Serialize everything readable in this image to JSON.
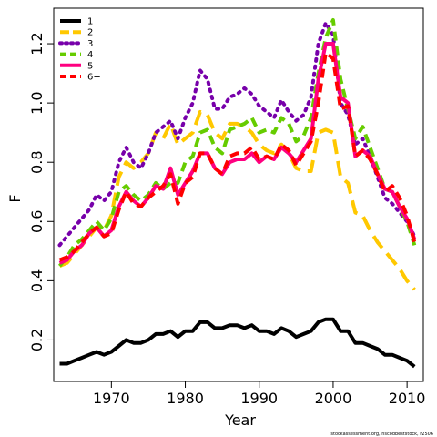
{
  "chart_data": {
    "type": "line",
    "title": "",
    "xlabel": "Year",
    "ylabel": "F",
    "xlim": [
      1962.2,
      2012.2
    ],
    "ylim": [
      0.06,
      1.32
    ],
    "x_ticks": [
      1970,
      1980,
      1990,
      2000,
      2010
    ],
    "y_ticks": [
      0.2,
      0.4,
      0.6,
      0.8,
      1.0,
      1.2
    ],
    "x_tick_labels": [
      "1970",
      "1980",
      "1990",
      "2000",
      "2010"
    ],
    "y_tick_labels": [
      "0.2",
      "0.4",
      "0.6",
      "0.8",
      "1.0",
      "1.2"
    ],
    "grid": false,
    "legend_position": "top-left",
    "x": [
      1963,
      1964,
      1965,
      1966,
      1967,
      1968,
      1969,
      1970,
      1971,
      1972,
      1973,
      1974,
      1975,
      1976,
      1977,
      1978,
      1979,
      1980,
      1981,
      1982,
      1983,
      1984,
      1985,
      1986,
      1987,
      1988,
      1989,
      1990,
      1991,
      1992,
      1993,
      1994,
      1995,
      1996,
      1997,
      1998,
      1999,
      2000,
      2001,
      2002,
      2003,
      2004,
      2005,
      2006,
      2007,
      2008,
      2009,
      2010,
      2011
    ],
    "series": [
      {
        "name": "1",
        "color": "#000000",
        "dash": "solid",
        "values": [
          0.12,
          0.12,
          0.13,
          0.14,
          0.15,
          0.16,
          0.15,
          0.16,
          0.18,
          0.2,
          0.19,
          0.19,
          0.2,
          0.22,
          0.22,
          0.23,
          0.21,
          0.23,
          0.23,
          0.26,
          0.26,
          0.24,
          0.24,
          0.25,
          0.25,
          0.24,
          0.25,
          0.23,
          0.23,
          0.22,
          0.24,
          0.23,
          0.21,
          0.22,
          0.23,
          0.26,
          0.27,
          0.27,
          0.23,
          0.23,
          0.19,
          0.19,
          0.18,
          0.17,
          0.15,
          0.15,
          0.14,
          0.13,
          0.11
        ]
      },
      {
        "name": "2",
        "color": "#FFC800",
        "dash": "long",
        "values": [
          0.45,
          0.46,
          0.49,
          0.52,
          0.55,
          0.58,
          0.57,
          0.62,
          0.75,
          0.8,
          0.78,
          0.8,
          0.83,
          0.9,
          0.88,
          0.93,
          0.86,
          0.88,
          0.9,
          0.97,
          0.96,
          0.9,
          0.88,
          0.93,
          0.93,
          0.92,
          0.9,
          0.86,
          0.84,
          0.83,
          0.86,
          0.83,
          0.78,
          0.77,
          0.77,
          0.9,
          0.91,
          0.9,
          0.75,
          0.73,
          0.63,
          0.62,
          0.57,
          0.53,
          0.5,
          0.47,
          0.44,
          0.4,
          0.37
        ]
      },
      {
        "name": "3",
        "color": "#7700AA",
        "dash": "dotted",
        "values": [
          0.52,
          0.55,
          0.58,
          0.61,
          0.64,
          0.69,
          0.67,
          0.7,
          0.8,
          0.85,
          0.8,
          0.78,
          0.83,
          0.9,
          0.92,
          0.94,
          0.88,
          0.95,
          1.0,
          1.11,
          1.08,
          0.98,
          0.98,
          1.02,
          1.03,
          1.05,
          1.03,
          0.99,
          0.97,
          0.95,
          1.01,
          0.97,
          0.94,
          0.96,
          1.02,
          1.2,
          1.27,
          1.23,
          1.0,
          0.96,
          0.86,
          0.88,
          0.82,
          0.75,
          0.68,
          0.66,
          0.63,
          0.6,
          0.55
        ]
      },
      {
        "name": "4",
        "color": "#66CC00",
        "dash": "dashed",
        "values": [
          0.45,
          0.48,
          0.52,
          0.54,
          0.57,
          0.6,
          0.57,
          0.61,
          0.7,
          0.72,
          0.69,
          0.67,
          0.69,
          0.73,
          0.71,
          0.73,
          0.73,
          0.8,
          0.82,
          0.9,
          0.91,
          0.85,
          0.83,
          0.91,
          0.92,
          0.93,
          0.95,
          0.9,
          0.91,
          0.9,
          0.95,
          0.93,
          0.87,
          0.89,
          0.95,
          1.1,
          1.22,
          1.28,
          1.08,
          0.98,
          0.88,
          0.92,
          0.85,
          0.78,
          0.71,
          0.7,
          0.65,
          0.6,
          0.52
        ]
      },
      {
        "name": "5",
        "color": "#FF0080",
        "dash": "solid",
        "values": [
          0.46,
          0.47,
          0.5,
          0.52,
          0.56,
          0.58,
          0.55,
          0.57,
          0.65,
          0.7,
          0.67,
          0.65,
          0.68,
          0.72,
          0.71,
          0.78,
          0.69,
          0.73,
          0.77,
          0.83,
          0.83,
          0.78,
          0.76,
          0.8,
          0.81,
          0.81,
          0.83,
          0.8,
          0.82,
          0.81,
          0.85,
          0.83,
          0.8,
          0.84,
          0.88,
          1.08,
          1.2,
          1.2,
          1.02,
          1.0,
          0.82,
          0.84,
          0.82,
          0.76,
          0.71,
          0.7,
          0.65,
          0.61,
          0.54
        ]
      },
      {
        "name": "6+",
        "color": "#FF0000",
        "dash": "dashed",
        "values": [
          0.47,
          0.48,
          0.5,
          0.53,
          0.56,
          0.58,
          0.55,
          0.56,
          0.64,
          0.7,
          0.66,
          0.65,
          0.68,
          0.7,
          0.72,
          0.76,
          0.66,
          0.73,
          0.75,
          0.83,
          0.83,
          0.78,
          0.76,
          0.82,
          0.83,
          0.83,
          0.85,
          0.81,
          0.82,
          0.81,
          0.86,
          0.84,
          0.79,
          0.83,
          0.87,
          1.0,
          1.17,
          1.15,
          0.98,
          0.99,
          0.82,
          0.84,
          0.81,
          0.76,
          0.7,
          0.72,
          0.68,
          0.62,
          0.53
        ]
      }
    ],
    "credit": "stockassessment.org, nscodbeststock, r2506"
  }
}
